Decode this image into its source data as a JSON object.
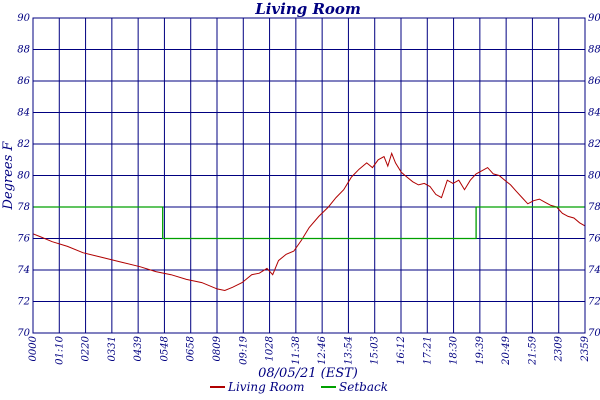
{
  "chart_data": {
    "type": "line",
    "title": "Living Room",
    "xlabel": "08/05/21 (EST)",
    "ylabel": "Degrees F",
    "ylim": [
      70,
      90
    ],
    "y_ticks": [
      70,
      72,
      74,
      76,
      78,
      80,
      82,
      84,
      86,
      88,
      90
    ],
    "x_tick_labels": [
      "0000",
      "01:10",
      "0220",
      "0331",
      "0439",
      "0548",
      "0658",
      "0809",
      "09:19",
      "1028",
      "11:38",
      "12:46",
      "13:54",
      "15:03",
      "16:12",
      "17:21",
      "18:30",
      "19:39",
      "20:49",
      "21:59",
      "2309",
      "2359"
    ],
    "x_unit": "minutes since midnight",
    "xlim": [
      0,
      1439
    ],
    "grid": true,
    "legend_position": "bottom",
    "colors": {
      "Living Room": "#b00000",
      "Setback": "#00a000",
      "grid": "#000080"
    },
    "series": [
      {
        "name": "Living Room",
        "points": [
          [
            0,
            76.3
          ],
          [
            20,
            76.1
          ],
          [
            50,
            75.8
          ],
          [
            90,
            75.5
          ],
          [
            130,
            75.1
          ],
          [
            180,
            74.8
          ],
          [
            230,
            74.5
          ],
          [
            280,
            74.2
          ],
          [
            320,
            73.9
          ],
          [
            360,
            73.7
          ],
          [
            400,
            73.4
          ],
          [
            440,
            73.2
          ],
          [
            480,
            72.8
          ],
          [
            500,
            72.7
          ],
          [
            520,
            72.9
          ],
          [
            545,
            73.2
          ],
          [
            570,
            73.7
          ],
          [
            590,
            73.8
          ],
          [
            610,
            74.1
          ],
          [
            625,
            73.7
          ],
          [
            640,
            74.6
          ],
          [
            660,
            75.0
          ],
          [
            680,
            75.2
          ],
          [
            700,
            75.9
          ],
          [
            720,
            76.7
          ],
          [
            745,
            77.4
          ],
          [
            770,
            78.0
          ],
          [
            790,
            78.6
          ],
          [
            810,
            79.1
          ],
          [
            830,
            79.9
          ],
          [
            850,
            80.4
          ],
          [
            870,
            80.8
          ],
          [
            885,
            80.5
          ],
          [
            900,
            81.0
          ],
          [
            915,
            81.2
          ],
          [
            925,
            80.6
          ],
          [
            935,
            81.4
          ],
          [
            945,
            80.8
          ],
          [
            960,
            80.2
          ],
          [
            975,
            79.9
          ],
          [
            990,
            79.6
          ],
          [
            1005,
            79.4
          ],
          [
            1020,
            79.5
          ],
          [
            1035,
            79.3
          ],
          [
            1050,
            78.8
          ],
          [
            1065,
            78.6
          ],
          [
            1080,
            79.7
          ],
          [
            1095,
            79.5
          ],
          [
            1110,
            79.7
          ],
          [
            1125,
            79.1
          ],
          [
            1140,
            79.7
          ],
          [
            1155,
            80.1
          ],
          [
            1170,
            80.3
          ],
          [
            1185,
            80.5
          ],
          [
            1200,
            80.1
          ],
          [
            1215,
            80.0
          ],
          [
            1230,
            79.7
          ],
          [
            1245,
            79.4
          ],
          [
            1260,
            79.0
          ],
          [
            1275,
            78.6
          ],
          [
            1290,
            78.2
          ],
          [
            1305,
            78.4
          ],
          [
            1320,
            78.5
          ],
          [
            1335,
            78.3
          ],
          [
            1350,
            78.1
          ],
          [
            1365,
            78.0
          ],
          [
            1380,
            77.6
          ],
          [
            1395,
            77.4
          ],
          [
            1410,
            77.3
          ],
          [
            1425,
            77.0
          ],
          [
            1439,
            76.8
          ]
        ]
      },
      {
        "name": "Setback",
        "points": [
          [
            0,
            78
          ],
          [
            338,
            78
          ],
          [
            338,
            76
          ],
          [
            1155,
            76
          ],
          [
            1155,
            78
          ],
          [
            1439,
            78
          ]
        ]
      }
    ]
  }
}
